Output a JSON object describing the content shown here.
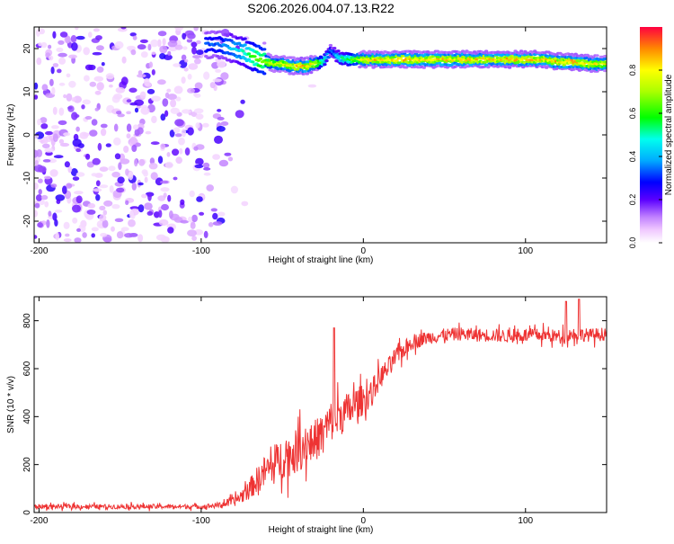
{
  "title": "S206.2026.004.07.13.R22",
  "chart_data": [
    {
      "type": "heatmap",
      "xlabel": "Height of straight line (km)",
      "ylabel": "Frequency (Hz)",
      "xlim": [
        -203,
        150
      ],
      "ylim": [
        -25,
        25
      ],
      "xticks": [
        -200,
        -100,
        0,
        100
      ],
      "yticks": [
        -20,
        -10,
        0,
        10,
        20
      ],
      "grid": false,
      "ridge": {
        "x": [
          -95,
          -90,
          -85,
          -80,
          -75,
          -70,
          -65,
          -60,
          -55,
          -50,
          -45,
          -40,
          -35,
          -30,
          -25,
          -20,
          -15,
          -10,
          -5,
          0,
          10,
          20,
          30,
          40,
          50,
          60,
          70,
          80,
          90,
          100,
          110,
          120,
          130,
          140,
          150
        ],
        "frequency": [
          21,
          21,
          20.5,
          20,
          19.5,
          18.5,
          17.5,
          17,
          16.5,
          16.5,
          16,
          16,
          16,
          16.5,
          17,
          19.5,
          18,
          17.5,
          17.5,
          17.5,
          17.5,
          17.5,
          17.5,
          17.5,
          17.5,
          17.5,
          17.5,
          17.5,
          17.5,
          17.5,
          17.5,
          17,
          17,
          16.5,
          16.5
        ],
        "amplitude": [
          0.35,
          0.35,
          0.4,
          0.45,
          0.5,
          0.6,
          0.7,
          0.75,
          0.8,
          0.85,
          0.85,
          0.9,
          0.9,
          0.85,
          0.6,
          0.35,
          0.5,
          0.6,
          0.75,
          0.85,
          0.9,
          0.9,
          0.9,
          0.9,
          0.9,
          0.9,
          0.9,
          0.9,
          0.9,
          0.9,
          0.9,
          0.9,
          0.9,
          0.85,
          0.85
        ]
      },
      "colorbar": {
        "label": "Normalized spectral amplitude",
        "range": [
          0,
          1
        ],
        "ticks": [
          "0.0",
          "0.2",
          "0.4",
          "0.6",
          "0.8"
        ]
      }
    },
    {
      "type": "line",
      "xlabel": "Height of straight line (km)",
      "ylabel": "SNR (10 * v/v)",
      "xlim": [
        -203,
        150
      ],
      "ylim": [
        0,
        900
      ],
      "xticks": [
        -200,
        -100,
        0,
        100
      ],
      "yticks": [
        0,
        200,
        400,
        600,
        800
      ],
      "grid": false,
      "series": [
        {
          "color": "#ee3333",
          "x": [
            -203,
            -190,
            -180,
            -170,
            -160,
            -150,
            -140,
            -130,
            -120,
            -110,
            -100,
            -90,
            -80,
            -75,
            -70,
            -65,
            -60,
            -55,
            -50,
            -45,
            -40,
            -35,
            -30,
            -25,
            -20,
            -15,
            -10,
            -5,
            0,
            5,
            10,
            15,
            20,
            25,
            30,
            40,
            50,
            60,
            70,
            80,
            90,
            100,
            110,
            120,
            130,
            140,
            150
          ],
          "y": [
            25,
            25,
            25,
            25,
            25,
            25,
            25,
            25,
            25,
            25,
            25,
            30,
            45,
            70,
            100,
            140,
            175,
            195,
            230,
            240,
            260,
            290,
            300,
            330,
            380,
            400,
            420,
            450,
            470,
            500,
            560,
            600,
            650,
            680,
            710,
            730,
            740,
            745,
            740,
            740,
            735,
            740,
            740,
            735,
            745,
            740,
            745
          ],
          "noise": [
            12,
            12,
            12,
            12,
            12,
            12,
            12,
            12,
            12,
            12,
            12,
            15,
            25,
            40,
            55,
            70,
            90,
            100,
            110,
            110,
            115,
            115,
            110,
            110,
            110,
            105,
            100,
            90,
            80,
            70,
            60,
            55,
            50,
            45,
            40,
            35,
            35,
            35,
            35,
            35,
            35,
            35,
            35,
            35,
            35,
            35,
            35
          ],
          "annotations_peaks": [
            {
              "x": -18,
              "y": 770
            },
            {
              "x": 133,
              "y": 890
            },
            {
              "x": 125,
              "y": 880
            }
          ]
        }
      ]
    }
  ],
  "colors": {
    "line": "#ee3333"
  }
}
